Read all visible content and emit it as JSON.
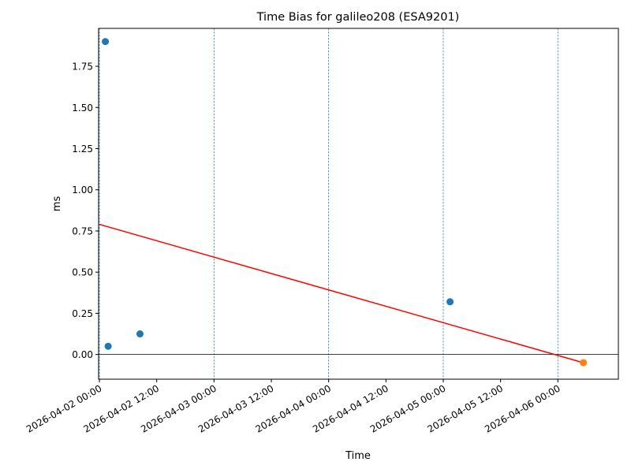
{
  "chart_data": {
    "type": "scatter",
    "title": "Time Bias for galileo208 (ESA9201)",
    "xlabel": "Time",
    "ylabel": "ms",
    "xlim": [
      "2026-04-01T23:50",
      "2026-04-06T12:40"
    ],
    "ylim": [
      -0.15,
      1.98
    ],
    "x_ticks": [
      {
        "value": "2026-04-02T00:00",
        "label": "2026-04-02 00:00"
      },
      {
        "value": "2026-04-02T12:00",
        "label": "2026-04-02 12:00"
      },
      {
        "value": "2026-04-03T00:00",
        "label": "2026-04-03 00:00"
      },
      {
        "value": "2026-04-03T12:00",
        "label": "2026-04-03 12:00"
      },
      {
        "value": "2026-04-04T00:00",
        "label": "2026-04-04 00:00"
      },
      {
        "value": "2026-04-04T12:00",
        "label": "2026-04-04 12:00"
      },
      {
        "value": "2026-04-05T00:00",
        "label": "2026-04-05 00:00"
      },
      {
        "value": "2026-04-05T12:00",
        "label": "2026-04-05 12:00"
      },
      {
        "value": "2026-04-06T00:00",
        "label": "2026-04-06 00:00"
      }
    ],
    "y_ticks": [
      {
        "value": 0.0,
        "label": "0.00"
      },
      {
        "value": 0.25,
        "label": "0.25"
      },
      {
        "value": 0.5,
        "label": "0.50"
      },
      {
        "value": 0.75,
        "label": "0.75"
      },
      {
        "value": 1.0,
        "label": "1.00"
      },
      {
        "value": 1.25,
        "label": "1.25"
      },
      {
        "value": 1.5,
        "label": "1.50"
      },
      {
        "value": 1.75,
        "label": "1.75"
      }
    ],
    "vertical_lines": [
      "2026-04-02T00:00",
      "2026-04-03T00:00",
      "2026-04-04T00:00",
      "2026-04-05T00:00",
      "2026-04-06T00:00"
    ],
    "zero_line": 0.0,
    "grid": false,
    "legend": "none",
    "series": [
      {
        "color": "#1f77b4",
        "points": [
          {
            "x": "2026-04-02T01:15",
            "y": 1.9
          },
          {
            "x": "2026-04-02T01:50",
            "y": 0.05
          },
          {
            "x": "2026-04-02T08:30",
            "y": 0.125
          },
          {
            "x": "2026-04-05T01:25",
            "y": 0.32
          }
        ]
      },
      {
        "color": "#ff7f0e",
        "points": [
          {
            "x": "2026-04-06T05:20",
            "y": -0.05
          }
        ]
      }
    ],
    "trend_line": {
      "color": "#ff0000",
      "points": [
        {
          "x": "2026-04-02T00:00",
          "y": 0.79
        },
        {
          "x": "2026-04-06T05:20",
          "y": -0.05
        }
      ]
    }
  }
}
